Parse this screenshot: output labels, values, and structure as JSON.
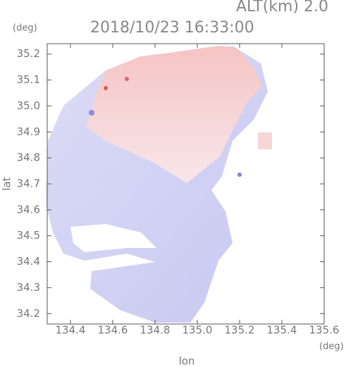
{
  "chart_data": {
    "type": "heatmap",
    "title": "2018/10/23 16:33:00",
    "subtitle": "ALT(km) 2.0",
    "x_label": "lon",
    "y_label": "lat",
    "x_unit": "(deg)",
    "y_unit": "(deg)",
    "xlim": [
      134.29,
      135.6
    ],
    "ylim": [
      34.16,
      35.24
    ],
    "xticks": [
      134.4,
      134.6,
      134.8,
      {
        "value": 135,
        "label": "135.0"
      },
      135.2,
      135.4,
      135.6
    ],
    "yticks": [
      34.2,
      34.3,
      34.4,
      34.5,
      34.6,
      34.7,
      34.8,
      34.9,
      {
        "value": 35,
        "label": "35.0"
      },
      35.1,
      35.2
    ]
  }
}
